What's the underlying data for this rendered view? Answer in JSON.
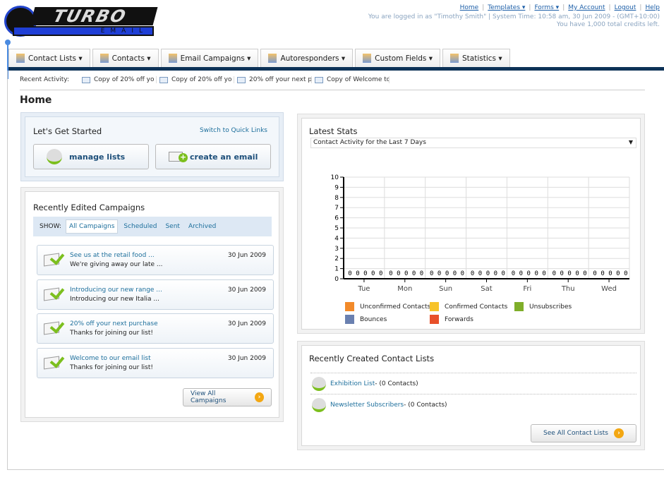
{
  "logo": {
    "text": "TURBO",
    "sub": "EMAIL"
  },
  "header": {
    "links": [
      "Home",
      "Templates ▾",
      "Forms ▾",
      "My Account",
      "Logout",
      "Help"
    ],
    "login_info": "You are logged in as \"Timothy Smith\" | System Time: 10:58 am, 30 Jun 2009 - (GMT+10:00)",
    "credits": "You have 1,000 total credits left."
  },
  "nav": {
    "tabs": [
      {
        "label": "Contact Lists ▾",
        "icon": "contact-lists-icon"
      },
      {
        "label": "Contacts ▾",
        "icon": "contacts-icon"
      },
      {
        "label": "Email Campaigns ▾",
        "icon": "envelope-icon"
      },
      {
        "label": "Autoresponders ▾",
        "icon": "autoresponder-icon"
      },
      {
        "label": "Custom Fields ▾",
        "icon": "custom-fields-icon"
      },
      {
        "label": "Statistics ▾",
        "icon": "statistics-icon"
      }
    ]
  },
  "recent_activity": {
    "label": "Recent Activity:",
    "items": [
      "Copy of 20% off yo",
      "Copy of 20% off yo",
      "20% off your next p",
      "Copy of Welcome to"
    ]
  },
  "page_title": "Home",
  "get_started": {
    "title": "Let's Get Started",
    "switch_link": "Switch to Quick Links",
    "manage_lists": "manage lists",
    "create_email": "create an email"
  },
  "campaigns": {
    "title": "Recently Edited Campaigns",
    "show_label": "SHOW:",
    "filters": [
      "All Campaigns",
      "Scheduled",
      "Sent",
      "Archived"
    ],
    "active_filter": "All Campaigns",
    "items": [
      {
        "title": "See us at the retail food ...",
        "desc": "We're giving away our late ...",
        "date": "30 Jun 2009"
      },
      {
        "title": "Introducing our new range ...",
        "desc": "Introducing our new Italia ...",
        "date": "30 Jun 2009"
      },
      {
        "title": "20% off your next purchase",
        "desc": "Thanks for joining our list!",
        "date": "30 Jun 2009"
      },
      {
        "title": "Welcome to our email list",
        "desc": "Thanks for joining our list!",
        "date": "30 Jun 2009"
      }
    ],
    "view_all": "View All Campaigns"
  },
  "stats": {
    "title": "Latest Stats",
    "select_value": "Contact Activity for the Last 7 Days"
  },
  "chart_data": {
    "type": "bar",
    "categories": [
      "Tue",
      "Mon",
      "Sun",
      "Sat",
      "Fri",
      "Thu",
      "Wed"
    ],
    "ylim": [
      0,
      10
    ],
    "yticks": [
      0,
      1,
      2,
      3,
      4,
      5,
      6,
      7,
      8,
      9,
      10
    ],
    "grid": true,
    "legend_placement": "bottom",
    "series": [
      {
        "name": "Unconfirmed Contacts",
        "color": "#f28a2a",
        "values": [
          0,
          0,
          0,
          0,
          0,
          0,
          0
        ]
      },
      {
        "name": "Confirmed Contacts",
        "color": "#f7c32a",
        "values": [
          0,
          0,
          0,
          0,
          0,
          0,
          0
        ]
      },
      {
        "name": "Unsubscribes",
        "color": "#7fae2a",
        "values": [
          0,
          0,
          0,
          0,
          0,
          0,
          0
        ]
      },
      {
        "name": "Bounces",
        "color": "#6a80b0",
        "values": [
          0,
          0,
          0,
          0,
          0,
          0,
          0
        ]
      },
      {
        "name": "Forwards",
        "color": "#e8502a",
        "values": [
          0,
          0,
          0,
          0,
          0,
          0,
          0
        ]
      }
    ]
  },
  "contact_lists": {
    "title": "Recently Created Contact Lists",
    "items": [
      {
        "name": "Exhibition List",
        "count": " - (0 Contacts)"
      },
      {
        "name": "Newsletter Subscribers",
        "count": " - (0 Contacts)"
      }
    ],
    "see_all": "See All Contact Lists"
  }
}
